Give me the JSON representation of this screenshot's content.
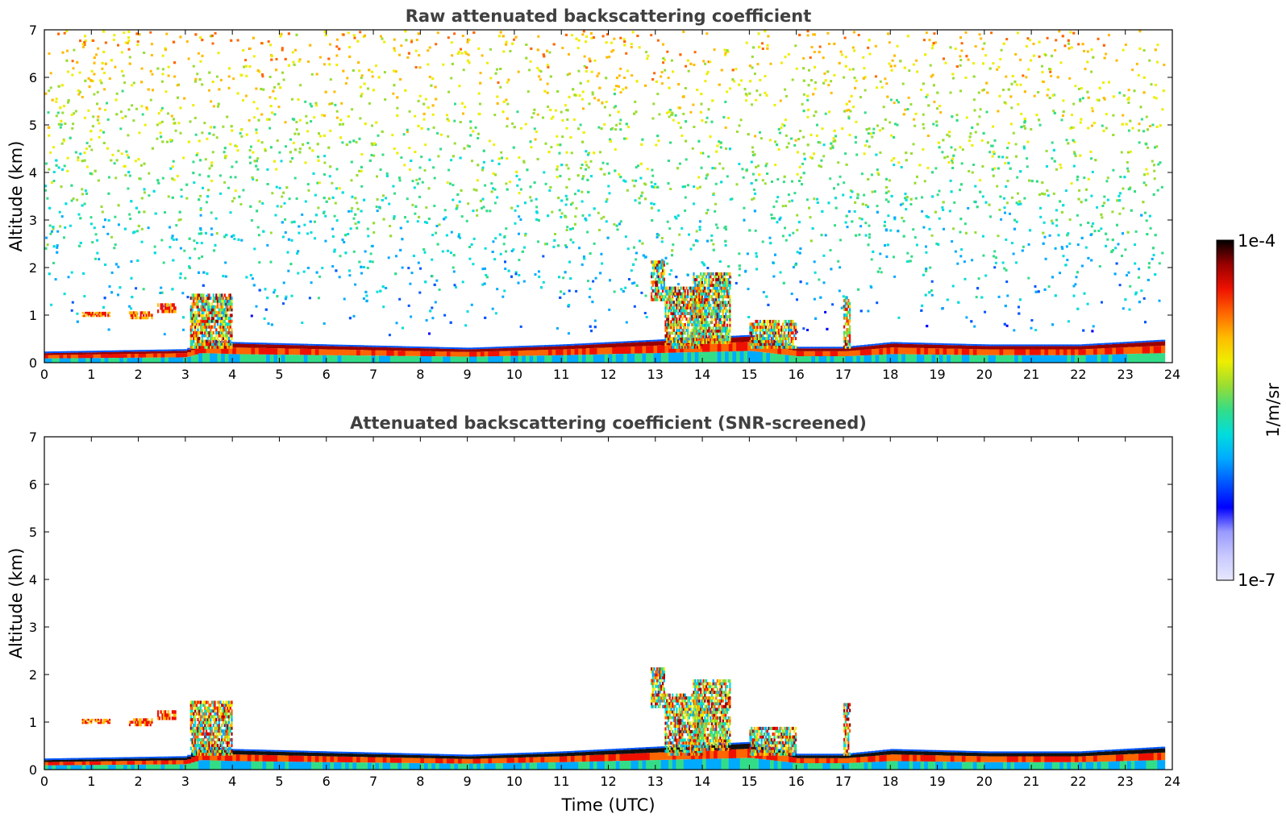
{
  "chart_data": [
    {
      "type": "heatmap",
      "title": "Raw attenuated backscattering coefficient",
      "xlabel": "",
      "ylabel": "Altitude (km)",
      "xlim": [
        0,
        24
      ],
      "ylim": [
        0,
        7
      ],
      "x_ticks": [
        "0",
        "1",
        "2",
        "3",
        "4",
        "5",
        "6",
        "7",
        "8",
        "9",
        "10",
        "11",
        "12",
        "13",
        "14",
        "15",
        "16",
        "17",
        "18",
        "19",
        "20",
        "21",
        "22",
        "23",
        "24"
      ],
      "y_ticks": [
        "0",
        "1",
        "2",
        "3",
        "4",
        "5",
        "6",
        "7"
      ],
      "data_end_x": 23.8,
      "noise_background": true,
      "features": [
        {
          "kind": "boundary-layer",
          "x": [
            0,
            3,
            3.3,
            4,
            6,
            9,
            11,
            12,
            13,
            14,
            15,
            16,
            17,
            18,
            20,
            22,
            23.8
          ],
          "top_km": [
            0.2,
            0.25,
            0.45,
            0.4,
            0.35,
            0.28,
            0.35,
            0.4,
            0.45,
            0.5,
            0.55,
            0.3,
            0.3,
            0.4,
            0.35,
            0.35,
            0.45
          ]
        },
        {
          "kind": "cloud",
          "x": [
            0.8,
            1.4
          ],
          "y": [
            0.97,
            1.07
          ]
        },
        {
          "kind": "cloud",
          "x": [
            1.8,
            2.3
          ],
          "y": [
            0.92,
            1.08
          ]
        },
        {
          "kind": "cloud",
          "x": [
            2.4,
            2.8
          ],
          "y": [
            1.05,
            1.25
          ]
        },
        {
          "kind": "aerosol-plume",
          "x": [
            3.1,
            4.0
          ],
          "y": [
            0.3,
            1.45
          ]
        },
        {
          "kind": "aerosol-plume",
          "x": [
            12.9,
            13.2
          ],
          "y": [
            1.3,
            2.15
          ]
        },
        {
          "kind": "aerosol-plume",
          "x": [
            13.2,
            14.0
          ],
          "y": [
            0.3,
            1.6
          ]
        },
        {
          "kind": "aerosol-plume",
          "x": [
            13.8,
            14.6
          ],
          "y": [
            0.4,
            1.9
          ]
        },
        {
          "kind": "aerosol-plume",
          "x": [
            15.0,
            16.0
          ],
          "y": [
            0.3,
            0.9
          ]
        },
        {
          "kind": "aerosol-plume",
          "x": [
            17.0,
            17.15
          ],
          "y": [
            0.3,
            1.4
          ]
        }
      ]
    },
    {
      "type": "heatmap",
      "title": "Attenuated backscattering coefficient (SNR-screened)",
      "xlabel": "Time (UTC)",
      "ylabel": "Altitude (km)",
      "xlim": [
        0,
        24
      ],
      "ylim": [
        0,
        7
      ],
      "x_ticks": [
        "0",
        "1",
        "2",
        "3",
        "4",
        "5",
        "6",
        "7",
        "8",
        "9",
        "10",
        "11",
        "12",
        "13",
        "14",
        "15",
        "16",
        "17",
        "18",
        "19",
        "20",
        "21",
        "22",
        "23",
        "24"
      ],
      "y_ticks": [
        "0",
        "1",
        "2",
        "3",
        "4",
        "5",
        "6",
        "7"
      ],
      "data_end_x": 23.8,
      "noise_background": false,
      "features": [
        {
          "kind": "boundary-layer",
          "x": [
            0,
            3,
            3.3,
            4,
            6,
            9,
            11,
            12,
            13,
            14,
            15,
            16,
            17,
            18,
            20,
            22,
            23.8
          ],
          "top_km": [
            0.2,
            0.25,
            0.45,
            0.4,
            0.35,
            0.28,
            0.35,
            0.4,
            0.45,
            0.5,
            0.55,
            0.3,
            0.3,
            0.4,
            0.35,
            0.35,
            0.45
          ]
        },
        {
          "kind": "cloud",
          "x": [
            0.8,
            1.4
          ],
          "y": [
            0.97,
            1.07
          ]
        },
        {
          "kind": "cloud",
          "x": [
            1.8,
            2.3
          ],
          "y": [
            0.92,
            1.08
          ]
        },
        {
          "kind": "cloud",
          "x": [
            2.4,
            2.8
          ],
          "y": [
            1.05,
            1.25
          ]
        },
        {
          "kind": "aerosol-plume",
          "x": [
            3.1,
            4.0
          ],
          "y": [
            0.3,
            1.45
          ]
        },
        {
          "kind": "aerosol-plume",
          "x": [
            12.9,
            13.2
          ],
          "y": [
            1.3,
            2.15
          ]
        },
        {
          "kind": "aerosol-plume",
          "x": [
            13.2,
            14.0
          ],
          "y": [
            0.3,
            1.6
          ]
        },
        {
          "kind": "aerosol-plume",
          "x": [
            13.8,
            14.6
          ],
          "y": [
            0.4,
            1.9
          ]
        },
        {
          "kind": "aerosol-plume",
          "x": [
            15.0,
            16.0
          ],
          "y": [
            0.3,
            0.9
          ]
        },
        {
          "kind": "aerosol-plume",
          "x": [
            17.0,
            17.15
          ],
          "y": [
            0.3,
            1.4
          ]
        }
      ]
    }
  ],
  "colorbar": {
    "label": "1/m/sr",
    "min_label": "1e-7",
    "max_label": "1e-4",
    "colormap": [
      "#ffffff",
      "#e6e8ff",
      "#c8c8ff",
      "#9999ff",
      "#0000ff",
      "#0055ff",
      "#00aaff",
      "#00dddd",
      "#33dd88",
      "#99dd33",
      "#eeee00",
      "#ffbb00",
      "#ff6600",
      "#ee1100",
      "#990000",
      "#000000"
    ]
  }
}
